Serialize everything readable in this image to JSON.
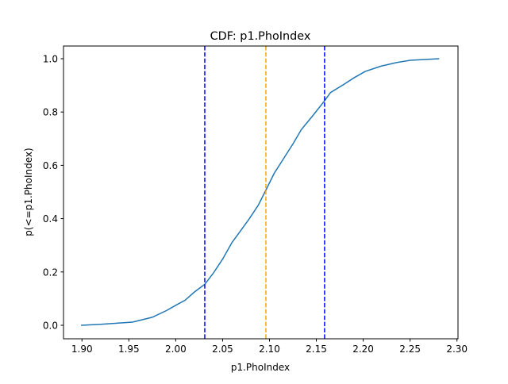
{
  "chart_data": {
    "type": "line",
    "title": "CDF: p1.PhoIndex",
    "xlabel": "p1.PhoIndex",
    "ylabel": "p(<=p1.PhoIndex)",
    "xlim": [
      1.8803,
      2.3011
    ],
    "ylim": [
      -0.0506,
      1.0476
    ],
    "xticks": [
      "1.90",
      "1.95",
      "2.00",
      "2.05",
      "2.10",
      "2.15",
      "2.20",
      "2.25",
      "2.30"
    ],
    "yticks": [
      "0.0",
      "0.2",
      "0.4",
      "0.6",
      "0.8",
      "1.0"
    ],
    "grid": false,
    "series": [
      {
        "color": "#1f77b4",
        "x": [
          1.899,
          1.92,
          1.954,
          1.975,
          1.99,
          2.0,
          2.01,
          2.02,
          2.031,
          2.04,
          2.05,
          2.06,
          2.078,
          2.088,
          2.096,
          2.105,
          2.115,
          2.125,
          2.134,
          2.147,
          2.159,
          2.165,
          2.179,
          2.19,
          2.202,
          2.219,
          2.235,
          2.25,
          2.281
        ],
        "y": [
          0.0,
          0.004,
          0.012,
          0.03,
          0.055,
          0.075,
          0.094,
          0.125,
          0.154,
          0.195,
          0.248,
          0.31,
          0.397,
          0.45,
          0.506,
          0.57,
          0.625,
          0.68,
          0.734,
          0.79,
          0.843,
          0.873,
          0.903,
          0.928,
          0.952,
          0.972,
          0.985,
          0.994,
          1.0
        ]
      }
    ],
    "vlines": [
      {
        "x": 2.031,
        "color": "#0000ff",
        "style": "dashed"
      },
      {
        "x": 2.0962,
        "color": "#ffa500",
        "style": "dashed"
      },
      {
        "x": 2.1588,
        "color": "#0000ff",
        "style": "dashed"
      }
    ]
  }
}
